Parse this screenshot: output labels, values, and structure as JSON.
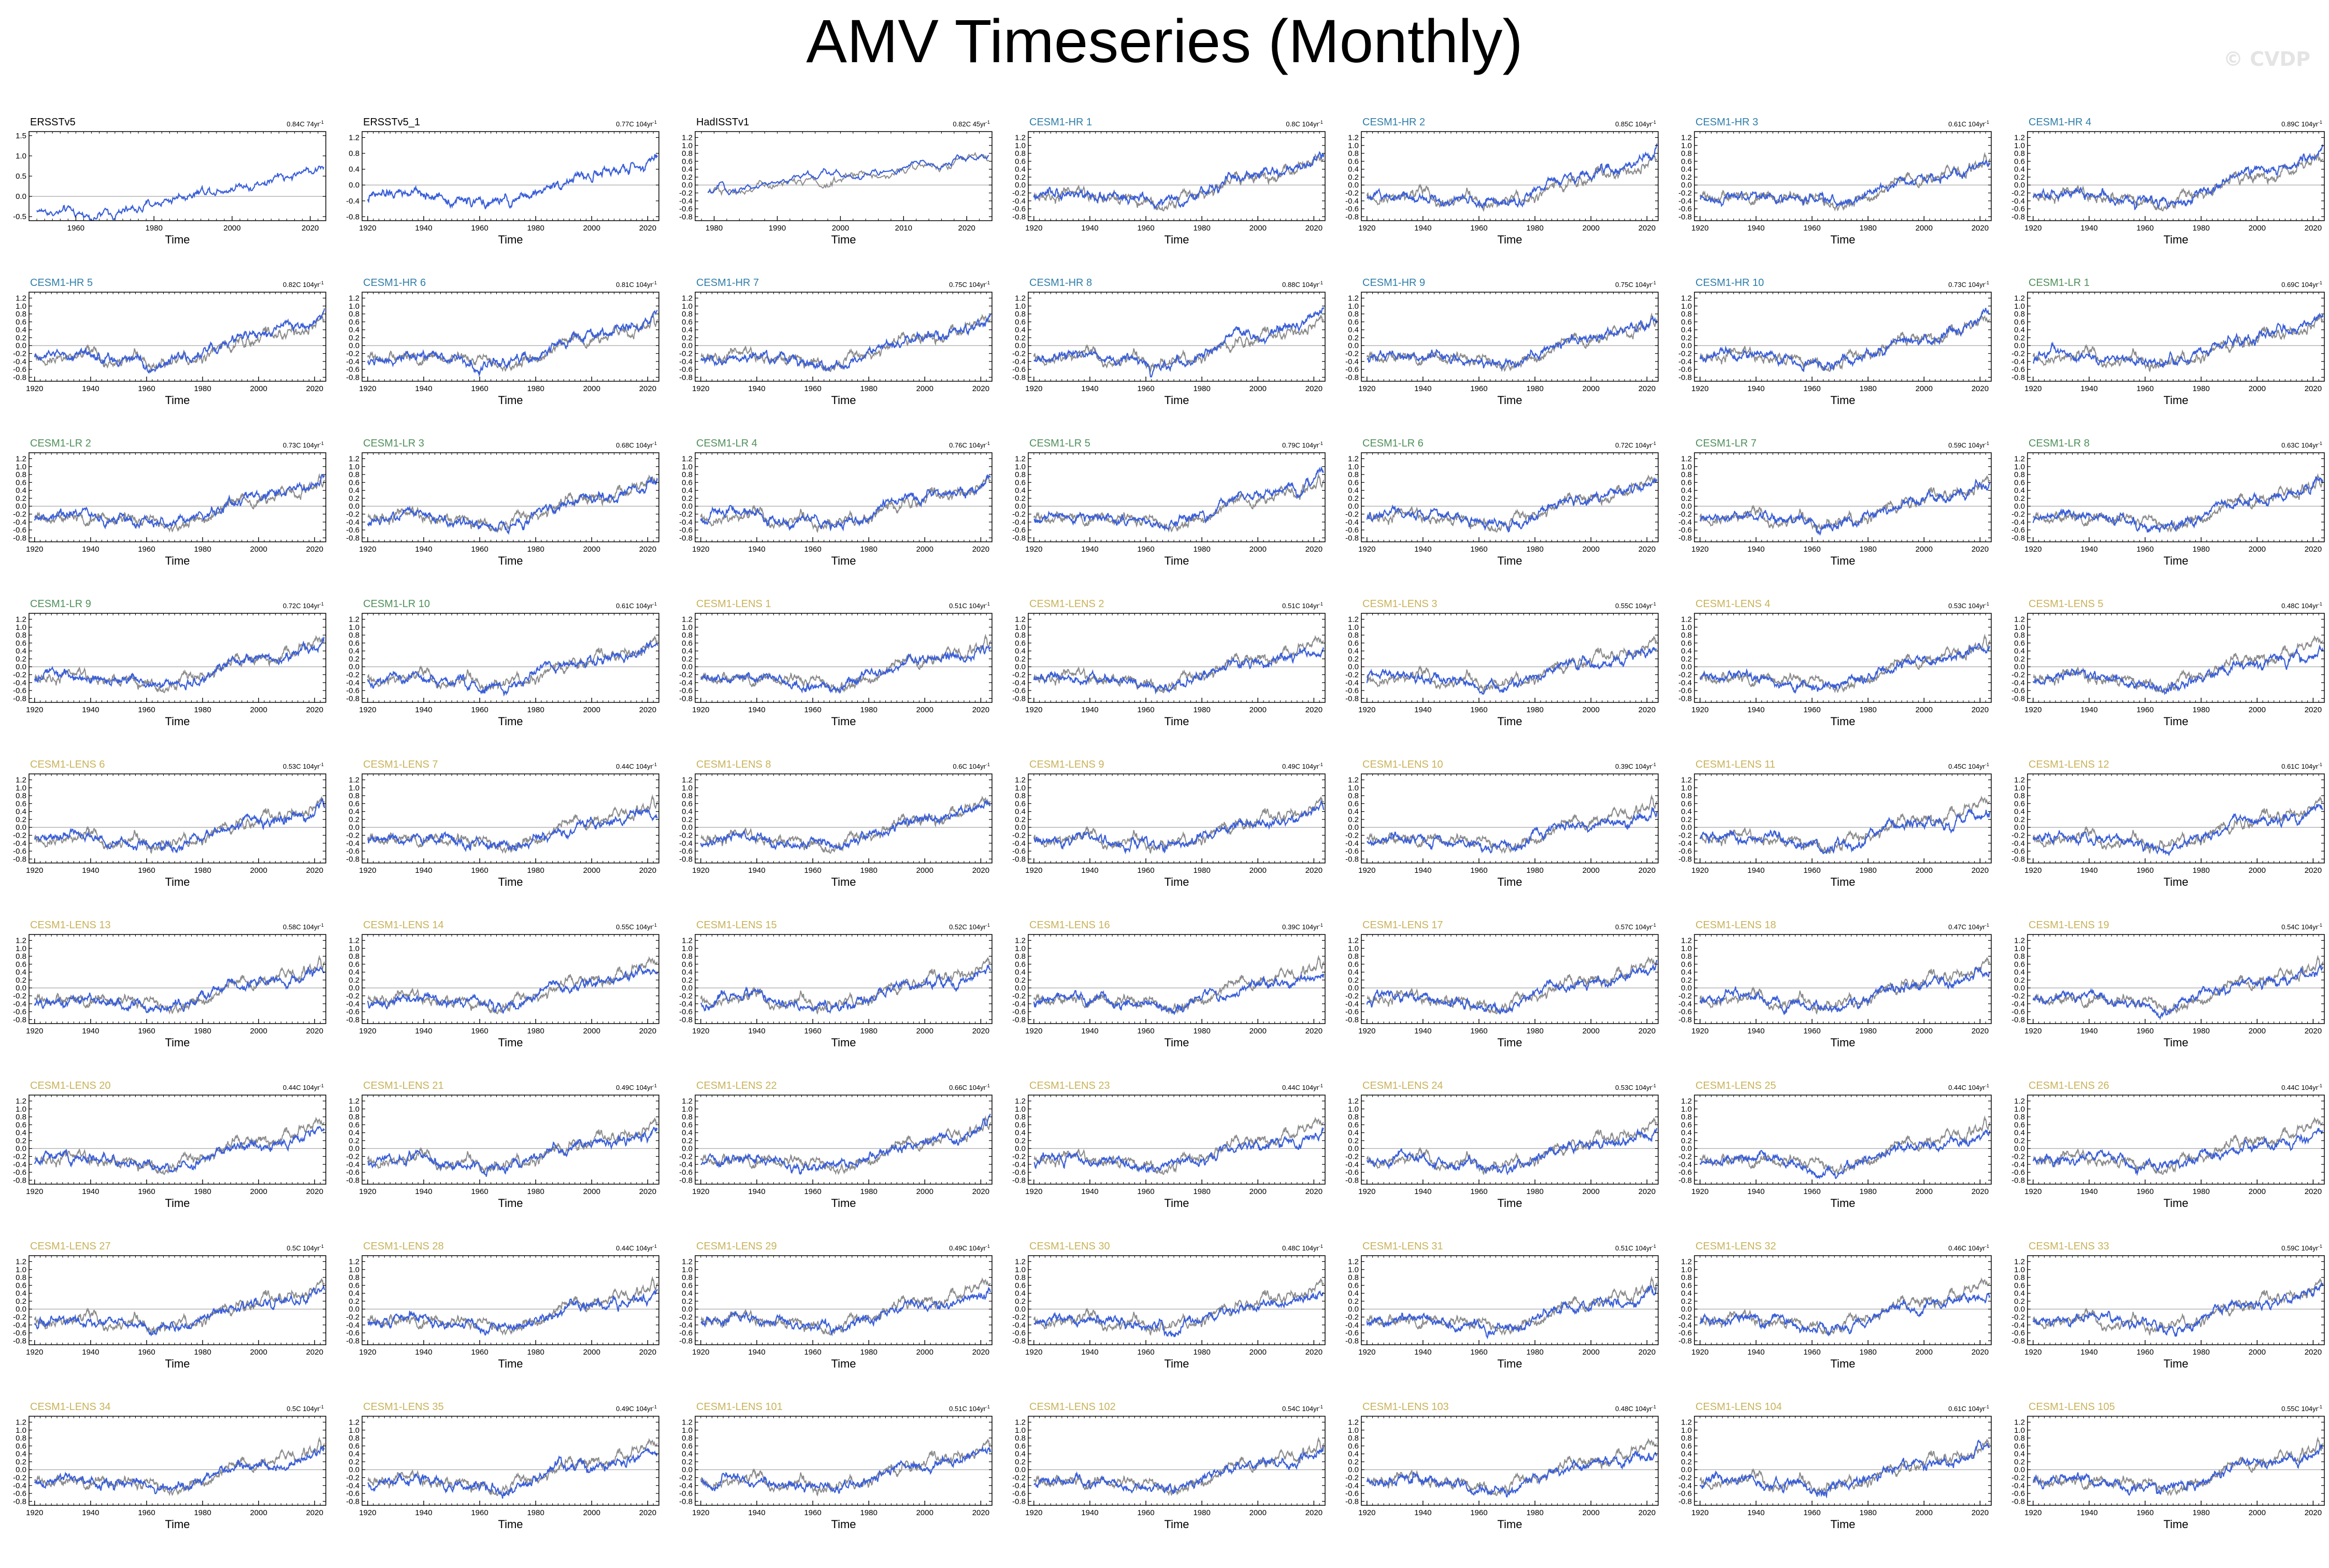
{
  "title": "AMV Timeseries (Monthly)",
  "watermark": "© CVDP",
  "colors": {
    "model_line": "#3a5fd9",
    "reference_line": "#8c8c8c",
    "observation_title": "#000000",
    "hr_title": "#2f7ea8",
    "lr_title": "#4f8f5a",
    "lens_title": "#c9b25a"
  },
  "chart_data": {
    "type": "line",
    "xlabel": "Time",
    "panels": [
      {
        "label": "ERSSTv5",
        "group": "obs",
        "rate": "0.84C 74yr",
        "xlim": [
          1948,
          2024
        ],
        "xticks": [
          1960,
          1980,
          2000,
          2020
        ],
        "ylim": [
          -0.6,
          1.6
        ],
        "yticks": [
          "-0.5",
          "0.0",
          "0.5",
          "1.0",
          "1.5"
        ],
        "ytick_values": [
          -0.5,
          0,
          0.5,
          1,
          1.5
        ],
        "reference": false
      },
      {
        "label": "ERSSTv5_1",
        "group": "obs",
        "rate": "0.77C 104yr",
        "xlim": [
          1918,
          2024
        ],
        "xticks": [
          1920,
          1940,
          1960,
          1980,
          2000,
          2020
        ],
        "ylim": [
          -0.9,
          1.35
        ],
        "yticks": [
          "-0.8",
          "-0.4",
          "0.0",
          "0.4",
          "0.8",
          "1.2"
        ],
        "ytick_values": [
          -0.8,
          -0.4,
          0,
          0.4,
          0.8,
          1.2
        ],
        "reference": false
      },
      {
        "label": "HadISSTv1",
        "group": "obs",
        "rate": "0.82C 45yr",
        "xlim": [
          1977,
          2024
        ],
        "xticks": [
          1980,
          1990,
          2000,
          2010,
          2020
        ],
        "ylim": [
          -0.9,
          1.35
        ],
        "yticks": [
          "-0.8",
          "-0.6",
          "-0.4",
          "-0.2",
          "0.0",
          "0.2",
          "0.4",
          "0.6",
          "0.8",
          "1.0",
          "1.2"
        ],
        "ytick_values": [
          -0.8,
          -0.6,
          -0.4,
          -0.2,
          0,
          0.2,
          0.4,
          0.6,
          0.8,
          1.0,
          1.2
        ],
        "reference": true
      },
      {
        "label": "CESM1-HR 1",
        "group": "hr",
        "rate": "0.8C 104yr"
      },
      {
        "label": "CESM1-HR 2",
        "group": "hr",
        "rate": "0.85C 104yr"
      },
      {
        "label": "CESM1-HR 3",
        "group": "hr",
        "rate": "0.61C 104yr"
      },
      {
        "label": "CESM1-HR 4",
        "group": "hr",
        "rate": "0.89C 104yr"
      },
      {
        "label": "CESM1-HR 5",
        "group": "hr",
        "rate": "0.82C 104yr"
      },
      {
        "label": "CESM1-HR 6",
        "group": "hr",
        "rate": "0.81C 104yr"
      },
      {
        "label": "CESM1-HR 7",
        "group": "hr",
        "rate": "0.75C 104yr"
      },
      {
        "label": "CESM1-HR 8",
        "group": "hr",
        "rate": "0.88C 104yr"
      },
      {
        "label": "CESM1-HR 9",
        "group": "hr",
        "rate": "0.75C 104yr"
      },
      {
        "label": "CESM1-HR 10",
        "group": "hr",
        "rate": "0.73C 104yr"
      },
      {
        "label": "CESM1-LR 1",
        "group": "lr",
        "rate": "0.69C 104yr"
      },
      {
        "label": "CESM1-LR 2",
        "group": "lr",
        "rate": "0.73C 104yr"
      },
      {
        "label": "CESM1-LR 3",
        "group": "lr",
        "rate": "0.68C 104yr"
      },
      {
        "label": "CESM1-LR 4",
        "group": "lr",
        "rate": "0.76C 104yr"
      },
      {
        "label": "CESM1-LR 5",
        "group": "lr",
        "rate": "0.79C 104yr"
      },
      {
        "label": "CESM1-LR 6",
        "group": "lr",
        "rate": "0.72C 104yr"
      },
      {
        "label": "CESM1-LR 7",
        "group": "lr",
        "rate": "0.59C 104yr"
      },
      {
        "label": "CESM1-LR 8",
        "group": "lr",
        "rate": "0.63C 104yr"
      },
      {
        "label": "CESM1-LR 9",
        "group": "lr",
        "rate": "0.72C 104yr"
      },
      {
        "label": "CESM1-LR 10",
        "group": "lr",
        "rate": "0.61C 104yr"
      },
      {
        "label": "CESM1-LENS 1",
        "group": "lens",
        "rate": "0.51C 104yr"
      },
      {
        "label": "CESM1-LENS 2",
        "group": "lens",
        "rate": "0.51C 104yr"
      },
      {
        "label": "CESM1-LENS 3",
        "group": "lens",
        "rate": "0.55C 104yr"
      },
      {
        "label": "CESM1-LENS 4",
        "group": "lens",
        "rate": "0.53C 104yr"
      },
      {
        "label": "CESM1-LENS 5",
        "group": "lens",
        "rate": "0.48C 104yr"
      },
      {
        "label": "CESM1-LENS 6",
        "group": "lens",
        "rate": "0.53C 104yr"
      },
      {
        "label": "CESM1-LENS 7",
        "group": "lens",
        "rate": "0.44C 104yr"
      },
      {
        "label": "CESM1-LENS 8",
        "group": "lens",
        "rate": "0.6C 104yr"
      },
      {
        "label": "CESM1-LENS 9",
        "group": "lens",
        "rate": "0.49C 104yr"
      },
      {
        "label": "CESM1-LENS 10",
        "group": "lens",
        "rate": "0.39C 104yr"
      },
      {
        "label": "CESM1-LENS 11",
        "group": "lens",
        "rate": "0.45C 104yr"
      },
      {
        "label": "CESM1-LENS 12",
        "group": "lens",
        "rate": "0.61C 104yr"
      },
      {
        "label": "CESM1-LENS 13",
        "group": "lens",
        "rate": "0.58C 104yr"
      },
      {
        "label": "CESM1-LENS 14",
        "group": "lens",
        "rate": "0.55C 104yr"
      },
      {
        "label": "CESM1-LENS 15",
        "group": "lens",
        "rate": "0.52C 104yr"
      },
      {
        "label": "CESM1-LENS 16",
        "group": "lens",
        "rate": "0.39C 104yr"
      },
      {
        "label": "CESM1-LENS 17",
        "group": "lens",
        "rate": "0.57C 104yr"
      },
      {
        "label": "CESM1-LENS 18",
        "group": "lens",
        "rate": "0.47C 104yr"
      },
      {
        "label": "CESM1-LENS 19",
        "group": "lens",
        "rate": "0.54C 104yr"
      },
      {
        "label": "CESM1-LENS 20",
        "group": "lens",
        "rate": "0.44C 104yr"
      },
      {
        "label": "CESM1-LENS 21",
        "group": "lens",
        "rate": "0.49C 104yr"
      },
      {
        "label": "CESM1-LENS 22",
        "group": "lens",
        "rate": "0.66C 104yr"
      },
      {
        "label": "CESM1-LENS 23",
        "group": "lens",
        "rate": "0.44C 104yr"
      },
      {
        "label": "CESM1-LENS 24",
        "group": "lens",
        "rate": "0.53C 104yr"
      },
      {
        "label": "CESM1-LENS 25",
        "group": "lens",
        "rate": "0.44C 104yr"
      },
      {
        "label": "CESM1-LENS 26",
        "group": "lens",
        "rate": "0.44C 104yr"
      },
      {
        "label": "CESM1-LENS 27",
        "group": "lens",
        "rate": "0.5C 104yr"
      },
      {
        "label": "CESM1-LENS 28",
        "group": "lens",
        "rate": "0.44C 104yr"
      },
      {
        "label": "CESM1-LENS 29",
        "group": "lens",
        "rate": "0.49C 104yr"
      },
      {
        "label": "CESM1-LENS 30",
        "group": "lens",
        "rate": "0.48C 104yr"
      },
      {
        "label": "CESM1-LENS 31",
        "group": "lens",
        "rate": "0.51C 104yr"
      },
      {
        "label": "CESM1-LENS 32",
        "group": "lens",
        "rate": "0.46C 104yr"
      },
      {
        "label": "CESM1-LENS 33",
        "group": "lens",
        "rate": "0.59C 104yr"
      },
      {
        "label": "CESM1-LENS 34",
        "group": "lens",
        "rate": "0.5C 104yr"
      },
      {
        "label": "CESM1-LENS 35",
        "group": "lens",
        "rate": "0.49C 104yr"
      },
      {
        "label": "CESM1-LENS 101",
        "group": "lens",
        "rate": "0.51C 104yr"
      },
      {
        "label": "CESM1-LENS 102",
        "group": "lens",
        "rate": "0.54C 104yr"
      },
      {
        "label": "CESM1-LENS 103",
        "group": "lens",
        "rate": "0.48C 104yr"
      },
      {
        "label": "CESM1-LENS 104",
        "group": "lens",
        "rate": "0.61C 104yr"
      },
      {
        "label": "CESM1-LENS 105",
        "group": "lens",
        "rate": "0.55C 104yr"
      }
    ],
    "model_defaults": {
      "xlim": [
        1918,
        2024
      ],
      "xticks": [
        1920,
        1940,
        1960,
        1980,
        2000,
        2020
      ],
      "ylim": [
        -0.9,
        1.35
      ],
      "yticks": [
        "-0.8",
        "-0.6",
        "-0.4",
        "-0.2",
        "0.0",
        "0.2",
        "0.4",
        "0.6",
        "0.8",
        "1.0",
        "1.2"
      ],
      "ytick_values": [
        -0.8,
        -0.6,
        -0.4,
        -0.2,
        0,
        0.2,
        0.4,
        0.6,
        0.8,
        1.0,
        1.2
      ],
      "reference": true
    },
    "rate_superscript": "-1"
  }
}
